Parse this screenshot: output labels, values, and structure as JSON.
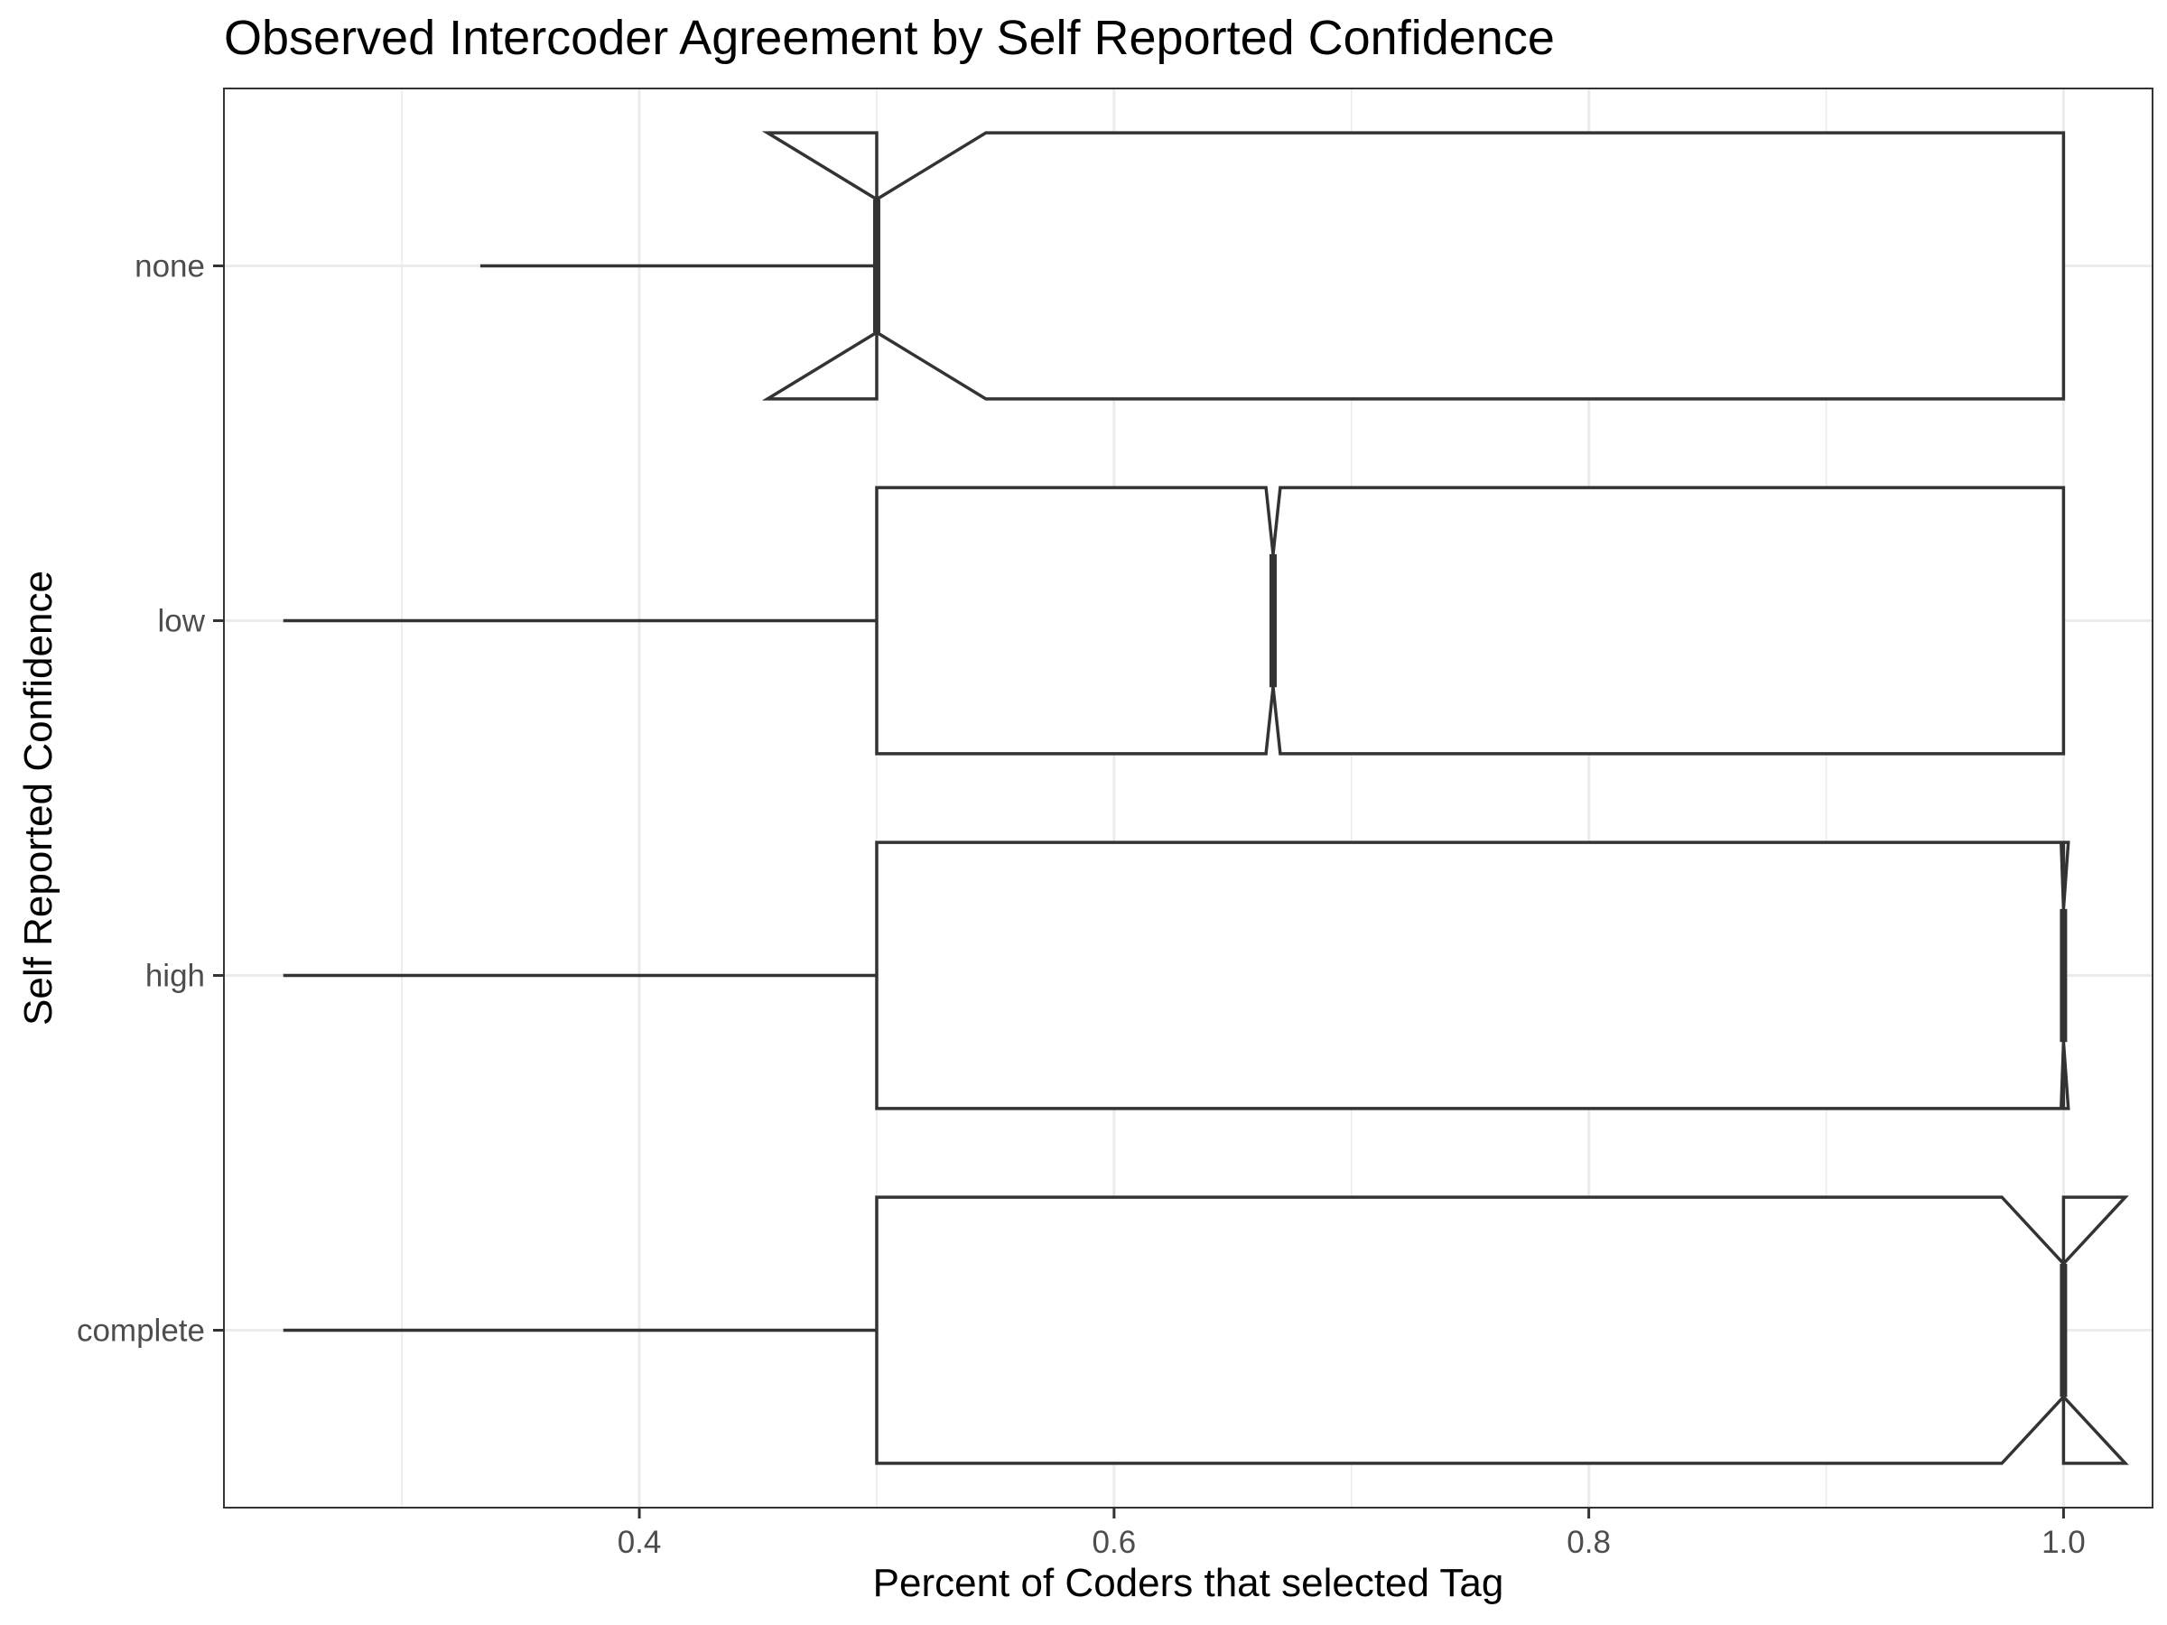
{
  "chart_data": {
    "type": "boxplot",
    "orientation": "horizontal",
    "notched": true,
    "title": "Observed Intercoder Agreement by Self Reported Confidence",
    "xlabel": "Percent of Coders that selected Tag",
    "ylabel": "Self Reported Confidence",
    "xlim": [
      0.225,
      1.0375
    ],
    "x_ticks": [
      0.4,
      0.6,
      0.8,
      1.0
    ],
    "x_tick_labels": [
      "0.4",
      "0.6",
      "0.8",
      "1.0"
    ],
    "x_minor_gridlines": [
      0.3,
      0.5,
      0.7,
      0.9
    ],
    "grid": true,
    "categories": [
      "none",
      "low",
      "high",
      "complete"
    ],
    "boxes": [
      {
        "category": "none",
        "whisker_low": 0.333,
        "q1": 0.5,
        "median": 0.5,
        "q3": 1.0,
        "whisker_high": 1.0,
        "notch_low": 0.454,
        "notch_high": 0.546
      },
      {
        "category": "low",
        "whisker_low": 0.25,
        "q1": 0.5,
        "median": 0.667,
        "q3": 1.0,
        "whisker_high": 1.0,
        "notch_low": 0.664,
        "notch_high": 0.67
      },
      {
        "category": "high",
        "whisker_low": 0.25,
        "q1": 0.5,
        "median": 1.0,
        "q3": 1.0,
        "whisker_high": 1.0,
        "notch_low": 0.999,
        "notch_high": 1.002
      },
      {
        "category": "complete",
        "whisker_low": 0.25,
        "q1": 0.5,
        "median": 1.0,
        "q3": 1.0,
        "whisker_high": 1.0,
        "notch_low": 0.974,
        "notch_high": 1.026
      }
    ]
  }
}
